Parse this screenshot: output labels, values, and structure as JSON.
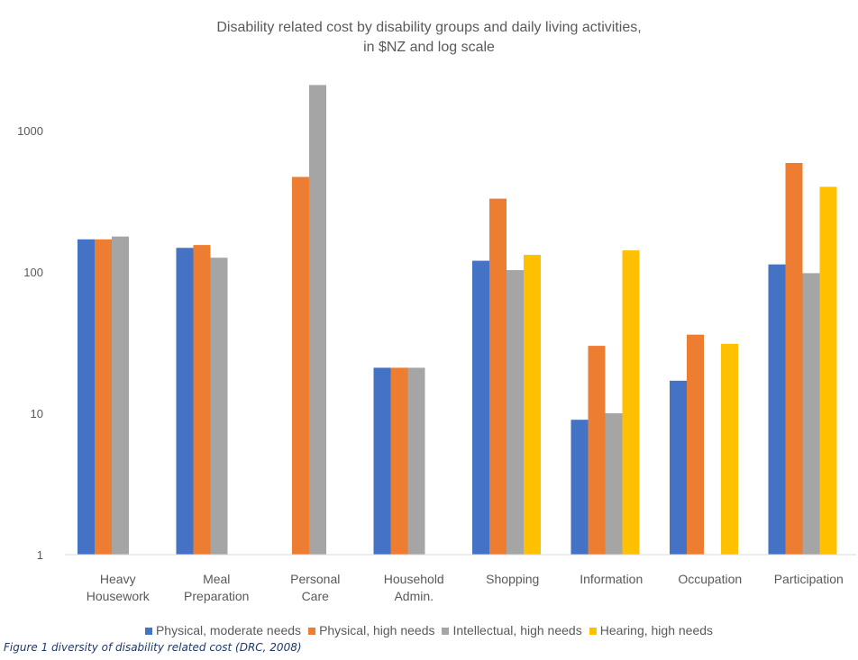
{
  "chart_data": {
    "type": "bar",
    "title": [
      "Disability related cost by disability groups and daily living activities,",
      "in $NZ and log scale"
    ],
    "xlabel": "",
    "ylabel": "",
    "yscale": "log",
    "ylim": [
      1,
      2200
    ],
    "yticks": [
      "1",
      "10",
      "100",
      "1000"
    ],
    "categories": [
      [
        "Heavy",
        "Housework"
      ],
      [
        "Meal",
        "Preparation"
      ],
      [
        "Personal",
        "Care"
      ],
      [
        "Household",
        "Admin."
      ],
      [
        "Shopping"
      ],
      [
        "Information"
      ],
      [
        "Occupation"
      ],
      [
        "Participation"
      ]
    ],
    "series": [
      {
        "name": "Physical, moderate needs",
        "color": "#4472c4",
        "values": [
          170,
          148,
          null,
          21,
          120,
          9,
          17,
          113
        ]
      },
      {
        "name": "Physical, high needs",
        "color": "#ed7d31",
        "values": [
          170,
          155,
          470,
          21,
          330,
          30,
          36,
          590
        ]
      },
      {
        "name": "Intellectual, high needs",
        "color": "#a5a5a5",
        "values": [
          178,
          126,
          2100,
          21,
          103,
          10,
          null,
          98
        ]
      },
      {
        "name": "Hearing, high needs",
        "color": "#ffc000",
        "values": [
          null,
          null,
          null,
          null,
          132,
          142,
          31,
          400
        ]
      }
    ],
    "grid": false,
    "legend": "bottom"
  },
  "caption": "Figure 1 diversity of disability related cost (DRC, 2008)"
}
